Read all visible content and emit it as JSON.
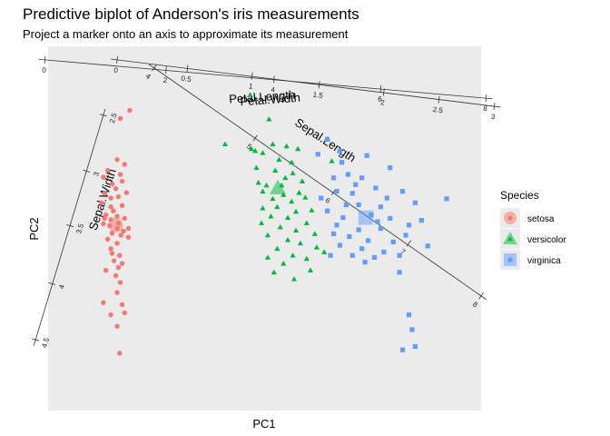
{
  "chart_data": {
    "type": "scatter",
    "title": "Predictive biplot of Anderson's iris measurements",
    "subtitle": "Project a marker onto an axis to approximate its measurement",
    "xlabel": "PC1",
    "ylabel": "PC2",
    "grid": false,
    "legend": {
      "title": "Species",
      "placement": "right",
      "entries": [
        {
          "name": "setosa",
          "shape": "circle",
          "color": "#F8766D"
        },
        {
          "name": "versicolor",
          "shape": "triangle",
          "color": "#00BA38"
        },
        {
          "name": "virginica",
          "shape": "square",
          "color": "#619CFF"
        }
      ]
    },
    "xlim": [
      -3.3,
      3.6
    ],
    "ylim": [
      -2.9,
      2.5
    ],
    "series": [
      {
        "name": "setosa",
        "color": "#F8766D",
        "shape": "circle",
        "centroid": [
          -2.22,
          -0.15
        ],
        "points": [
          [
            -2.0,
            1.55
          ],
          [
            -2.15,
            1.43
          ],
          [
            -2.2,
            0.82
          ],
          [
            -2.08,
            0.75
          ],
          [
            -2.35,
            0.66
          ],
          [
            -2.15,
            0.6
          ],
          [
            -2.42,
            0.56
          ],
          [
            -2.28,
            0.46
          ],
          [
            -2.12,
            0.5
          ],
          [
            -2.22,
            0.39
          ],
          [
            -2.4,
            0.32
          ],
          [
            -2.05,
            0.33
          ],
          [
            -2.3,
            0.25
          ],
          [
            -2.18,
            0.27
          ],
          [
            -2.45,
            0.18
          ],
          [
            -2.3,
            0.12
          ],
          [
            -2.12,
            0.14
          ],
          [
            -2.26,
            0.06
          ],
          [
            -2.38,
            0.0
          ],
          [
            -2.2,
            -0.02
          ],
          [
            -2.08,
            -0.05
          ],
          [
            -2.3,
            -0.07
          ],
          [
            -2.42,
            -0.13
          ],
          [
            -2.18,
            -0.12
          ],
          [
            -2.32,
            -0.16
          ],
          [
            -2.2,
            -0.2
          ],
          [
            -2.1,
            -0.24
          ],
          [
            -2.28,
            -0.27
          ],
          [
            -2.14,
            -0.3
          ],
          [
            -2.02,
            -0.33
          ],
          [
            -2.35,
            -0.36
          ],
          [
            -2.2,
            -0.42
          ],
          [
            -2.3,
            -0.5
          ],
          [
            -2.16,
            -0.6
          ],
          [
            -2.25,
            -0.68
          ],
          [
            -2.12,
            -0.72
          ],
          [
            -2.38,
            -0.82
          ],
          [
            -2.22,
            -0.9
          ],
          [
            -2.15,
            -1.0
          ],
          [
            -2.2,
            -1.15
          ],
          [
            -2.12,
            -1.33
          ],
          [
            -2.42,
            -1.3
          ],
          [
            -2.3,
            -1.48
          ],
          [
            -2.2,
            -1.65
          ],
          [
            -2.08,
            -1.45
          ],
          [
            -2.18,
            -0.78
          ],
          [
            -2.28,
            -0.57
          ],
          [
            -2.02,
            -0.2
          ],
          [
            -2.4,
            -0.05
          ],
          [
            -2.16,
            -2.05
          ]
        ]
      },
      {
        "name": "versicolor",
        "color": "#00BA38",
        "shape": "triangle",
        "centroid": [
          0.36,
          0.4
        ],
        "points": [
          [
            -0.08,
            1.78
          ],
          [
            0.22,
            1.42
          ],
          [
            -0.48,
            1.05
          ],
          [
            -0.06,
            0.98
          ],
          [
            0.28,
            1.05
          ],
          [
            0.5,
            1.02
          ],
          [
            0.68,
            0.98
          ],
          [
            0.12,
            0.92
          ],
          [
            0.38,
            0.82
          ],
          [
            0.58,
            0.78
          ],
          [
            0.02,
            0.7
          ],
          [
            0.32,
            0.66
          ],
          [
            0.6,
            0.62
          ],
          [
            0.48,
            0.55
          ],
          [
            0.75,
            0.5
          ],
          [
            0.05,
            0.48
          ],
          [
            0.42,
            0.44
          ],
          [
            0.18,
            0.44
          ],
          [
            0.12,
            0.35
          ],
          [
            0.45,
            0.3
          ],
          [
            0.7,
            0.33
          ],
          [
            0.28,
            0.24
          ],
          [
            0.58,
            0.2
          ],
          [
            0.8,
            0.26
          ],
          [
            0.35,
            0.12
          ],
          [
            0.12,
            0.1
          ],
          [
            0.65,
            0.05
          ],
          [
            0.9,
            0.07
          ],
          [
            0.25,
            -0.02
          ],
          [
            0.52,
            -0.04
          ],
          [
            0.1,
            -0.12
          ],
          [
            0.82,
            -0.12
          ],
          [
            0.4,
            -0.18
          ],
          [
            0.65,
            -0.23
          ],
          [
            0.2,
            -0.3
          ],
          [
            0.95,
            -0.28
          ],
          [
            0.52,
            -0.37
          ],
          [
            0.72,
            -0.42
          ],
          [
            0.35,
            -0.5
          ],
          [
            0.98,
            -0.48
          ],
          [
            0.6,
            -0.6
          ],
          [
            0.82,
            -0.65
          ],
          [
            0.2,
            -0.63
          ],
          [
            1.1,
            -0.55
          ],
          [
            0.45,
            -0.72
          ],
          [
            0.3,
            -0.85
          ],
          [
            0.88,
            -0.82
          ],
          [
            0.62,
            -0.95
          ],
          [
            1.22,
            0.8
          ],
          [
            0.0,
            0.95
          ]
        ]
      },
      {
        "name": "virginica",
        "color": "#619CFF",
        "shape": "square",
        "centroid": [
          1.76,
          -0.04
        ],
        "points": [
          [
            1.15,
            1.12
          ],
          [
            1.0,
            0.9
          ],
          [
            1.35,
            0.95
          ],
          [
            1.78,
            0.88
          ],
          [
            2.15,
            0.7
          ],
          [
            1.25,
            0.55
          ],
          [
            1.48,
            0.6
          ],
          [
            1.7,
            0.55
          ],
          [
            1.3,
            0.35
          ],
          [
            1.55,
            0.32
          ],
          [
            1.92,
            0.4
          ],
          [
            2.35,
            0.35
          ],
          [
            1.05,
            0.25
          ],
          [
            1.65,
            0.15
          ],
          [
            2.0,
            0.12
          ],
          [
            2.55,
            0.18
          ],
          [
            3.05,
            0.24
          ],
          [
            1.15,
            0.06
          ],
          [
            1.85,
            0.0
          ],
          [
            1.4,
            -0.04
          ],
          [
            2.15,
            -0.05
          ],
          [
            2.65,
            -0.08
          ],
          [
            1.3,
            -0.15
          ],
          [
            1.65,
            -0.22
          ],
          [
            2.0,
            -0.2
          ],
          [
            2.4,
            -0.3
          ],
          [
            1.5,
            -0.32
          ],
          [
            1.8,
            -0.38
          ],
          [
            2.2,
            -0.4
          ],
          [
            2.75,
            -0.46
          ],
          [
            1.35,
            -0.45
          ],
          [
            1.7,
            -0.5
          ],
          [
            2.05,
            -0.55
          ],
          [
            1.55,
            -0.6
          ],
          [
            1.9,
            -0.63
          ],
          [
            2.3,
            -0.6
          ],
          [
            1.25,
            -0.28
          ],
          [
            2.45,
            -0.15
          ],
          [
            1.45,
            0.15
          ],
          [
            2.1,
            0.25
          ],
          [
            1.6,
            0.45
          ],
          [
            1.95,
            -0.1
          ],
          [
            1.75,
            -0.7
          ],
          [
            2.3,
            -0.85
          ],
          [
            2.45,
            -1.48
          ],
          [
            2.35,
            -2.0
          ],
          [
            2.55,
            -1.95
          ],
          [
            2.5,
            -1.7
          ],
          [
            1.38,
            0.78
          ],
          [
            1.2,
            -0.6
          ]
        ]
      }
    ],
    "biplot_axes": [
      {
        "name": "Sepal.Length",
        "label": "Sepal.Length",
        "direction": [
          0.36,
          -0.66
        ],
        "ticks": [
          {
            "value": 4,
            "label": "4"
          },
          {
            "value": 5,
            "label": "5"
          },
          {
            "value": 6,
            "label": "6"
          },
          {
            "value": 7,
            "label": "7"
          },
          {
            "value": 8,
            "label": "8"
          }
        ],
        "tick_coords": [
          [
            -1.61,
            2.18
          ],
          [
            0.0,
            1.14
          ],
          [
            1.25,
            0.34
          ],
          [
            2.45,
            -0.42
          ],
          [
            3.6,
            -1.2
          ]
        ]
      },
      {
        "name": "Sepal.Width",
        "label": "Sepal.Width",
        "direction": [
          -0.27,
          -0.96
        ],
        "ticks": [
          {
            "value": 2.5,
            "label": "2.5"
          },
          {
            "value": 3,
            "label": "3"
          },
          {
            "value": 3.5,
            "label": "3.5"
          },
          {
            "value": 4,
            "label": "4"
          },
          {
            "value": 4.5,
            "label": "4.5"
          }
        ],
        "tick_coords": [
          [
            -2.42,
            1.48
          ],
          [
            -2.69,
            0.65
          ],
          [
            -2.95,
            -0.16
          ],
          [
            -3.24,
            -1.02
          ],
          [
            -3.5,
            -1.85
          ]
        ]
      },
      {
        "name": "Petal.Length",
        "label": "Petal.Length",
        "direction": [
          0.99,
          -0.08
        ],
        "ticks": [
          {
            "value": 0,
            "label": "0"
          },
          {
            "value": 2,
            "label": "2"
          },
          {
            "value": 4,
            "label": "4"
          },
          {
            "value": 6,
            "label": "6"
          },
          {
            "value": 8,
            "label": "8"
          }
        ],
        "tick_coords": [
          [
            -3.35,
            2.3
          ],
          [
            -1.42,
            2.15
          ],
          [
            0.3,
            2.01
          ],
          [
            2.0,
            1.87
          ],
          [
            3.68,
            1.73
          ]
        ]
      },
      {
        "name": "Petal.Width",
        "label": "Petal.Width",
        "direction": [
          0.99,
          -0.1
        ],
        "ticks": [
          {
            "value": 0,
            "label": "0"
          },
          {
            "value": 0.5,
            "label": "0.5"
          },
          {
            "value": 1,
            "label": "1"
          },
          {
            "value": 1.5,
            "label": "1.5"
          },
          {
            "value": 2,
            "label": "2"
          },
          {
            "value": 2.5,
            "label": "2.5"
          },
          {
            "value": 3,
            "label": "3"
          }
        ],
        "tick_coords": [
          [
            -2.2,
            2.3
          ],
          [
            -1.08,
            2.17
          ],
          [
            -0.05,
            2.06
          ],
          [
            1.02,
            1.93
          ],
          [
            2.05,
            1.82
          ],
          [
            2.93,
            1.71
          ],
          [
            3.81,
            1.61
          ]
        ]
      }
    ]
  }
}
